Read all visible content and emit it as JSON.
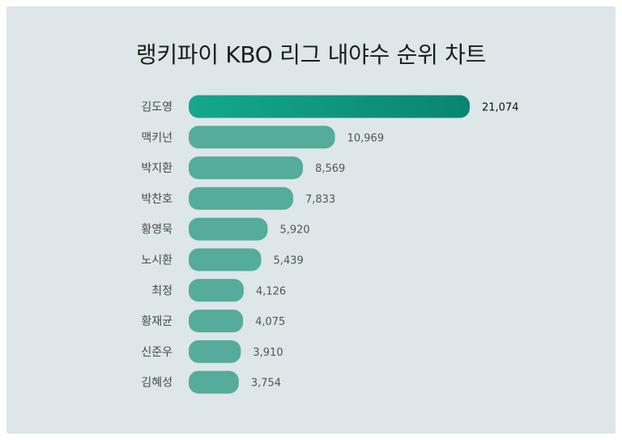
{
  "title": "랭키파이 KBO 리그 내야수 순위 차트",
  "colors": {
    "background": "#dde6e9",
    "bar": "#55ac9a",
    "top_bar_start": "#14a88c",
    "top_bar_end": "#0a8473"
  },
  "chart_data": {
    "type": "bar",
    "orientation": "horizontal",
    "title": "랭키파이 KBO 리그 내야수 순위 차트",
    "categories": [
      "김도영",
      "맥키넌",
      "박지환",
      "박찬호",
      "황영묵",
      "노시환",
      "최정",
      "황재균",
      "신준우",
      "김혜성"
    ],
    "values": [
      21074,
      10969,
      8569,
      7833,
      5920,
      5439,
      4126,
      4075,
      3910,
      3754
    ],
    "value_labels": [
      "21,074",
      "10,969",
      "8,569",
      "7,833",
      "5,920",
      "5,439",
      "4,126",
      "4,075",
      "3,910",
      "3,754"
    ],
    "xlim": [
      0,
      21074
    ],
    "grid": false,
    "legend": false
  }
}
